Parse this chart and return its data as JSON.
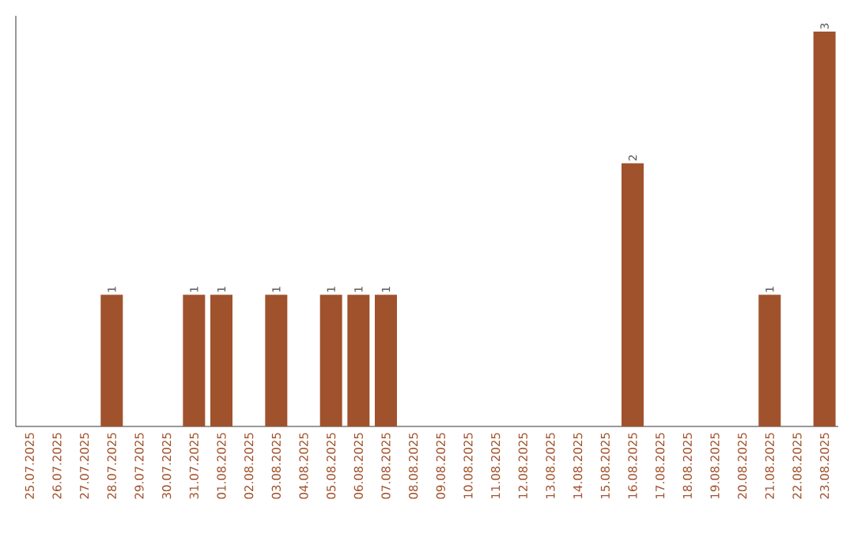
{
  "chart_data": {
    "type": "bar",
    "color": "#a0522d",
    "categories": [
      "25.07.2025",
      "26.07.2025",
      "27.07.2025",
      "28.07.2025",
      "29.07.2025",
      "30.07.2025",
      "31.07.2025",
      "01.08.2025",
      "02.08.2025",
      "03.08.2025",
      "04.08.2025",
      "05.08.2025",
      "06.08.2025",
      "07.08.2025",
      "08.08.2025",
      "09.08.2025",
      "10.08.2025",
      "11.08.2025",
      "12.08.2025",
      "13.08.2025",
      "14.08.2025",
      "15.08.2025",
      "16.08.2025",
      "17.08.2025",
      "18.08.2025",
      "19.08.2025",
      "20.08.2025",
      "21.08.2025",
      "22.08.2025",
      "23.08.2025"
    ],
    "values": [
      0,
      0,
      0,
      1,
      0,
      0,
      1,
      1,
      0,
      1,
      0,
      1,
      1,
      1,
      0,
      0,
      0,
      0,
      0,
      0,
      0,
      0,
      2,
      0,
      0,
      0,
      0,
      1,
      0,
      3
    ],
    "value_labels": [
      null,
      null,
      null,
      "1",
      null,
      null,
      "1",
      "1",
      null,
      "1",
      null,
      "1",
      "1",
      "1",
      null,
      null,
      null,
      null,
      null,
      null,
      null,
      null,
      "2",
      null,
      null,
      null,
      null,
      "1",
      null,
      "3"
    ],
    "tick_labels": "x",
    "grid": false
  }
}
